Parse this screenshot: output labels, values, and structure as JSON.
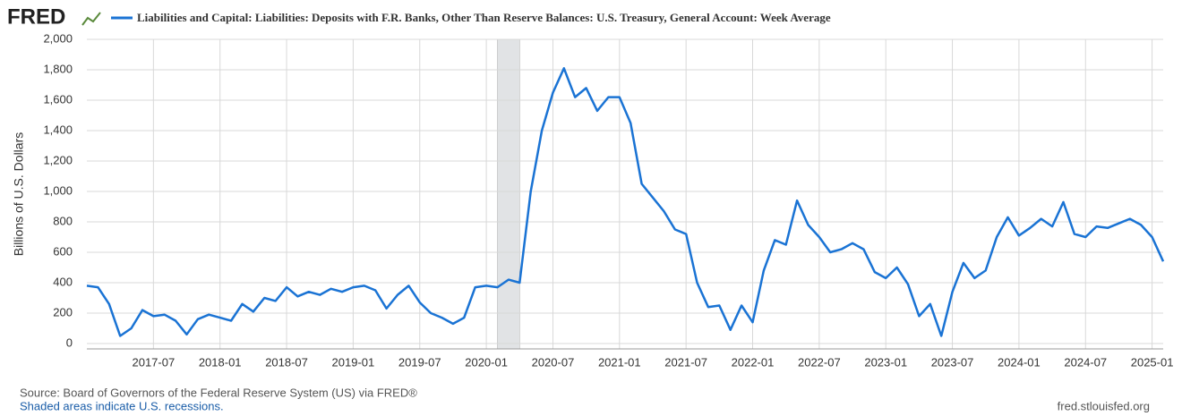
{
  "chart_data": {
    "type": "line",
    "logo": "FRED",
    "y_label": "Billions of U.S. Dollars",
    "source": "Source: Board of Governors of the Federal Reserve System (US) via FRED®",
    "note": "Shaded areas indicate U.S. recessions.",
    "url": "fred.stlouisfed.org",
    "grid": true,
    "recessions": [
      [
        "2020-02",
        "2020-04"
      ]
    ],
    "recession_color": "#e1e3e5",
    "xlim": [
      "2017-01",
      "2025-02"
    ],
    "xticks": [
      "2017-07",
      "2018-01",
      "2018-07",
      "2019-01",
      "2019-07",
      "2020-01",
      "2020-07",
      "2021-01",
      "2021-07",
      "2022-01",
      "2022-07",
      "2023-01",
      "2023-07",
      "2024-01",
      "2024-07",
      "2025-01"
    ],
    "ylim": [
      -35,
      2000
    ],
    "yticks": [
      0,
      200,
      400,
      600,
      800,
      {
        "value": 1000,
        "label": "1,000"
      },
      {
        "value": 1200,
        "label": "1,200"
      },
      {
        "value": 1400,
        "label": "1,400"
      },
      {
        "value": 1600,
        "label": "1,600"
      },
      {
        "value": 1800,
        "label": "1,800"
      },
      {
        "value": 2000,
        "label": "2,000"
      }
    ],
    "x": [
      "2017-01",
      "2017-02",
      "2017-03",
      "2017-04",
      "2017-05",
      "2017-06",
      "2017-07",
      "2017-08",
      "2017-09",
      "2017-10",
      "2017-11",
      "2017-12",
      "2018-01",
      "2018-02",
      "2018-03",
      "2018-04",
      "2018-05",
      "2018-06",
      "2018-07",
      "2018-08",
      "2018-09",
      "2018-10",
      "2018-11",
      "2018-12",
      "2019-01",
      "2019-02",
      "2019-03",
      "2019-04",
      "2019-05",
      "2019-06",
      "2019-07",
      "2019-08",
      "2019-09",
      "2019-10",
      "2019-11",
      "2019-12",
      "2020-01",
      "2020-02",
      "2020-03",
      "2020-04",
      "2020-05",
      "2020-06",
      "2020-07",
      "2020-08",
      "2020-09",
      "2020-10",
      "2020-11",
      "2020-12",
      "2021-01",
      "2021-02",
      "2021-03",
      "2021-04",
      "2021-05",
      "2021-06",
      "2021-07",
      "2021-08",
      "2021-09",
      "2021-10",
      "2021-11",
      "2021-12",
      "2022-01",
      "2022-02",
      "2022-03",
      "2022-04",
      "2022-05",
      "2022-06",
      "2022-07",
      "2022-08",
      "2022-09",
      "2022-10",
      "2022-11",
      "2022-12",
      "2023-01",
      "2023-02",
      "2023-03",
      "2023-04",
      "2023-05",
      "2023-06",
      "2023-07",
      "2023-08",
      "2023-09",
      "2023-10",
      "2023-11",
      "2023-12",
      "2024-01",
      "2024-02",
      "2024-03",
      "2024-04",
      "2024-05",
      "2024-06",
      "2024-07",
      "2024-08",
      "2024-09",
      "2024-10",
      "2024-11",
      "2024-12",
      "2025-01",
      "2025-02"
    ],
    "series": [
      {
        "name": "Liabilities and Capital: Liabilities: Deposits with F.R. Banks, Other Than Reserve Balances: U.S. Treasury, General Account: Week Average",
        "color": "#1a73d4",
        "values": [
          380,
          370,
          260,
          50,
          100,
          220,
          180,
          190,
          150,
          60,
          160,
          190,
          170,
          150,
          260,
          210,
          300,
          280,
          370,
          310,
          340,
          320,
          360,
          340,
          370,
          380,
          350,
          230,
          320,
          380,
          270,
          200,
          170,
          130,
          170,
          370,
          380,
          370,
          420,
          400,
          1000,
          1400,
          1650,
          1810,
          1620,
          1680,
          1530,
          1620,
          1620,
          1450,
          1050,
          960,
          870,
          750,
          720,
          400,
          240,
          250,
          90,
          250,
          140,
          480,
          680,
          650,
          940,
          780,
          700,
          600,
          620,
          660,
          620,
          470,
          430,
          500,
          390,
          180,
          260,
          50,
          340,
          530,
          430,
          480,
          700,
          830,
          710,
          760,
          820,
          770,
          930,
          720,
          700,
          770,
          760,
          790,
          820,
          780,
          700,
          540
        ]
      }
    ]
  }
}
